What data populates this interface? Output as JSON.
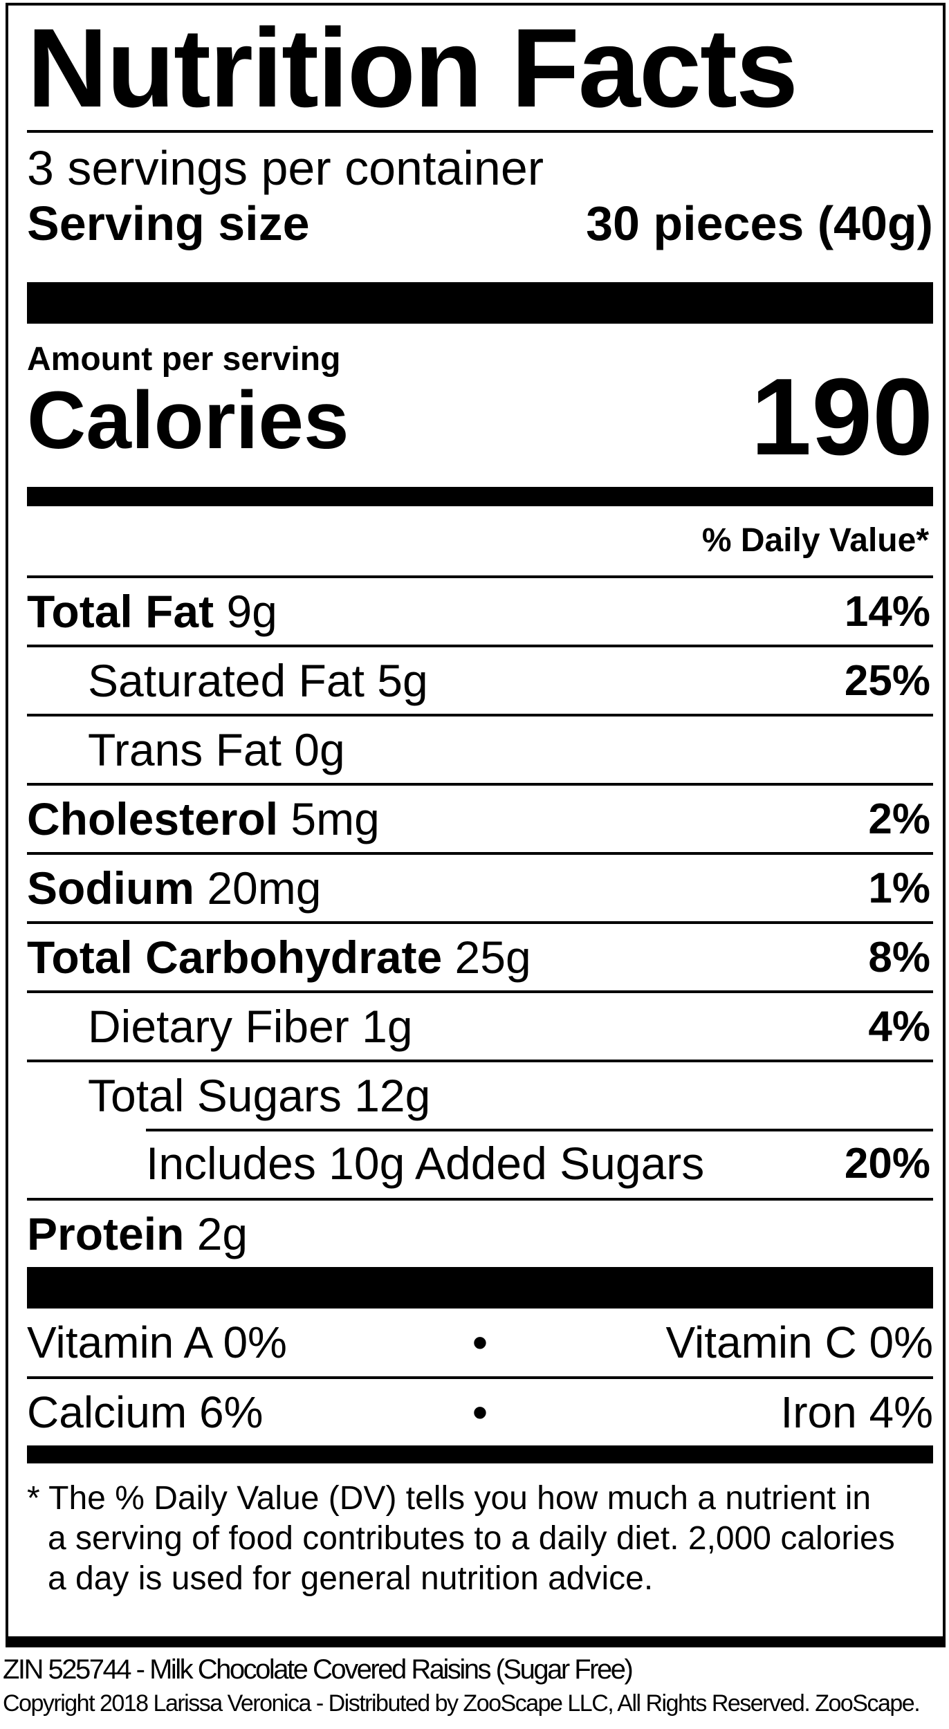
{
  "title": "Nutrition Facts",
  "servings_per_container": "3 servings per container",
  "serving_size": {
    "label": "Serving size",
    "value": "30 pieces (40g)"
  },
  "amount_per_serving": "Amount per serving",
  "calories": {
    "label": "Calories",
    "value": "190"
  },
  "daily_value_header": "% Daily Value*",
  "nutrients": [
    {
      "name": "Total Fat",
      "amount": "9g",
      "dv": "14%"
    },
    {
      "name": "Saturated Fat",
      "amount": "5g",
      "dv": "25%"
    },
    {
      "name": "Trans Fat",
      "amount": "0g",
      "dv": ""
    },
    {
      "name": "Cholesterol",
      "amount": "5mg",
      "dv": "2%"
    },
    {
      "name": "Sodium",
      "amount": "20mg",
      "dv": "1%"
    },
    {
      "name": "Total Carbohydrate",
      "amount": "25g",
      "dv": "8%"
    },
    {
      "name": "Dietary Fiber",
      "amount": "1g",
      "dv": "4%"
    },
    {
      "name": "Total Sugars",
      "amount": "12g",
      "dv": ""
    },
    {
      "name": "Includes 10g Added Sugars",
      "amount": "",
      "dv": "20%"
    },
    {
      "name": "Protein",
      "amount": "2g",
      "dv": ""
    }
  ],
  "vitamins": [
    {
      "left": "Vitamin A 0%",
      "right": "Vitamin C 0%"
    },
    {
      "left": "Calcium 6%",
      "right": "Iron 4%"
    }
  ],
  "separator": "•",
  "footnote": [
    "* The % Daily Value (DV) tells you how much a nutrient in",
    "a serving of food contributes to a daily diet. 2,000 calories",
    "a day is used for general nutrition advice."
  ],
  "product_line": "ZIN 525744 - Milk Chocolate Covered Raisins (Sugar Free)",
  "copyright": "Copyright 2018 Larissa Veronica - Distributed by ZooScape LLC, All Rights Reserved. ZooScape."
}
